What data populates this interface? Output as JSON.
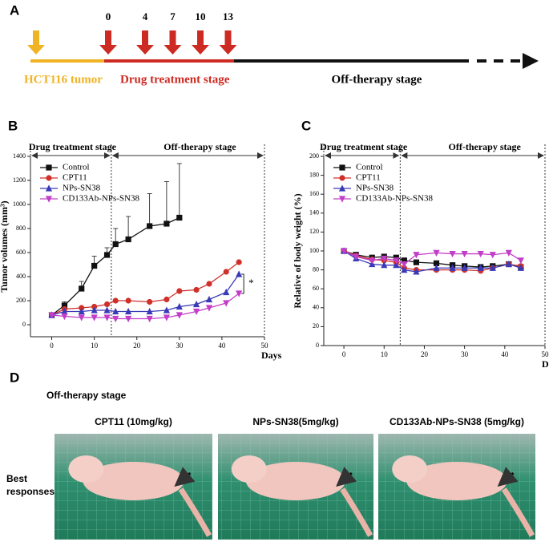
{
  "panel_a": {
    "label": "A",
    "days": [
      0,
      4,
      7,
      10,
      13
    ],
    "tumor_label": "HCT116 tumor",
    "treatment_label": "Drug treatment stage",
    "off_label": "Off-therapy stage"
  },
  "chart_data": [
    {
      "type": "line",
      "panel_label": "B",
      "ylabel": "Tumor volumes (mm³)",
      "xlabel": "Days",
      "phase_labels": [
        "Drug treatment stage",
        "Off-therapy stage"
      ],
      "significance": "*",
      "xlim": [
        -5,
        50
      ],
      "xticks": [
        0,
        10,
        20,
        30,
        40,
        50
      ],
      "ylim": [
        -100,
        1400
      ],
      "yticks": [
        0,
        200,
        400,
        600,
        800,
        1000,
        1200,
        1400
      ],
      "legend": "upper left",
      "x": [
        0,
        3,
        7,
        10,
        13,
        15,
        18,
        23,
        27,
        30,
        34,
        37,
        41,
        44
      ],
      "series": [
        {
          "name": "Control",
          "color": "#111111",
          "marker": "square",
          "values": [
            80,
            160,
            300,
            490,
            580,
            670,
            710,
            820,
            840,
            890,
            null,
            null,
            null,
            null
          ],
          "errors": [
            10,
            30,
            60,
            80,
            60,
            130,
            190,
            270,
            350,
            450,
            null,
            null,
            null,
            null
          ]
        },
        {
          "name": "CPT11",
          "color": "#d0302a",
          "marker": "circle",
          "values": [
            80,
            130,
            140,
            150,
            170,
            200,
            200,
            190,
            210,
            280,
            290,
            340,
            440,
            520
          ]
        },
        {
          "name": "NPs-SN38",
          "color": "#3a3ab8",
          "marker": "triangle-up",
          "values": [
            80,
            110,
            110,
            120,
            120,
            110,
            110,
            110,
            120,
            150,
            170,
            210,
            270,
            420
          ]
        },
        {
          "name": "CD133Ab-NPs-SN38",
          "color": "#c23ec8",
          "marker": "triangle-down",
          "values": [
            80,
            70,
            60,
            60,
            60,
            50,
            50,
            50,
            60,
            80,
            110,
            140,
            180,
            260
          ]
        }
      ]
    },
    {
      "type": "line",
      "panel_label": "C",
      "ylabel": "Relative of body weight (%)",
      "xlabel": "Days",
      "phase_labels": [
        "Drug treatment stage",
        "Off-therapy stage"
      ],
      "xlim": [
        -5,
        50
      ],
      "xticks": [
        0,
        10,
        20,
        30,
        40,
        50
      ],
      "ylim": [
        0,
        200
      ],
      "yticks": [
        0,
        20,
        40,
        60,
        80,
        100,
        120,
        140,
        160,
        180,
        200
      ],
      "legend": "upper left",
      "x": [
        0,
        3,
        7,
        10,
        13,
        15,
        18,
        23,
        27,
        30,
        34,
        37,
        41,
        44
      ],
      "series": [
        {
          "name": "Control",
          "color": "#111111",
          "marker": "square",
          "values": [
            100,
            96,
            93,
            94,
            93,
            90,
            88,
            87,
            85,
            84,
            83,
            84,
            86,
            83
          ]
        },
        {
          "name": "CPT11",
          "color": "#d0302a",
          "marker": "circle",
          "values": [
            100,
            95,
            91,
            90,
            88,
            82,
            80,
            80,
            80,
            80,
            79,
            82,
            86,
            84
          ]
        },
        {
          "name": "NPs-SN38",
          "color": "#3a3ab8",
          "marker": "triangle-up",
          "values": [
            100,
            92,
            86,
            85,
            85,
            80,
            78,
            82,
            82,
            82,
            82,
            82,
            86,
            82
          ]
        },
        {
          "name": "CD133Ab-NPs-SN38",
          "color": "#c23ec8",
          "marker": "triangle-down",
          "values": [
            100,
            94,
            90,
            92,
            90,
            86,
            96,
            98,
            97,
            97,
            97,
            96,
            98,
            90
          ]
        }
      ]
    }
  ],
  "panel_d": {
    "label": "D",
    "stage": "Off-therapy stage",
    "row_label": "Best responses",
    "columns": [
      "CPT11 (10mg/kg)",
      "NPs-SN38(5mg/kg)",
      "CD133Ab-NPs-SN38 (5mg/kg)"
    ]
  }
}
